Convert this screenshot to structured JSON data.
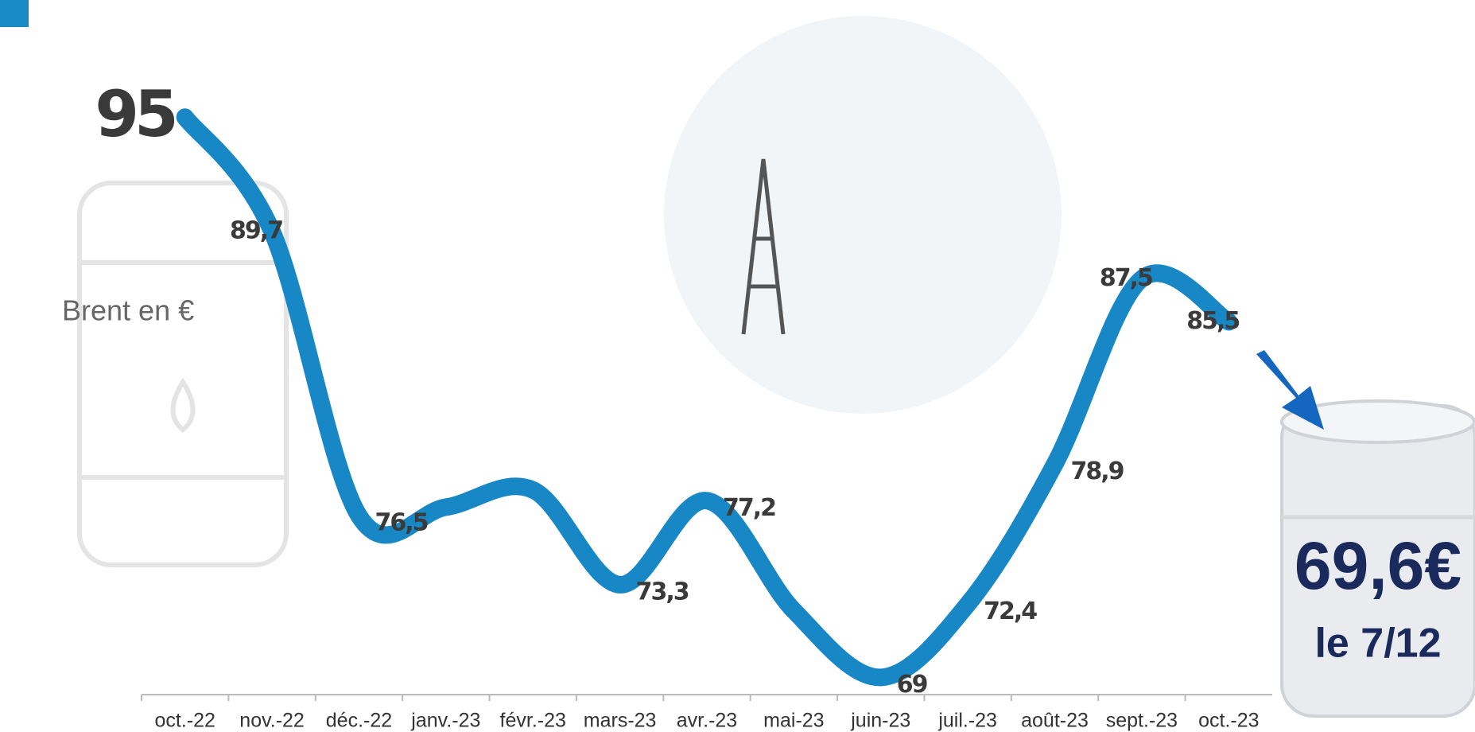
{
  "chart_data": {
    "type": "line",
    "annotations": [
      "Brent en €",
      "69,6€",
      "le 7/12"
    ],
    "categories": [
      "oct.-22",
      "nov.-22",
      "déc.-22",
      "janv.-23",
      "févr.-23",
      "mars-23",
      "avr.-23",
      "mai-23",
      "juin-23",
      "juil.-23",
      "août-23",
      "sept.-23",
      "oct.-23"
    ],
    "series": [
      {
        "color": "#1787c6",
        "values": [
          95,
          89.7,
          76.5,
          76.9,
          77.7,
          73.3,
          77.2,
          72.1,
          69,
          72.4,
          78.9,
          87.5,
          85.5
        ],
        "value_labels": [
          "95",
          "89,7",
          "76,5",
          null,
          null,
          "73,3",
          "77,2",
          null,
          "69",
          "72,4",
          "78,9",
          "87,5",
          "85,5"
        ]
      }
    ],
    "ylim": [
      68.2,
      99.7
    ]
  }
}
